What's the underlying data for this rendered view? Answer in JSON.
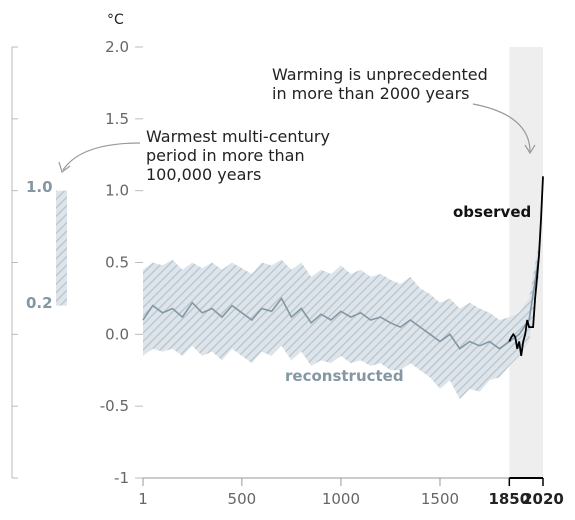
{
  "chart_data": {
    "type": "line",
    "unit_label": "°C",
    "ylim": [
      -1,
      2
    ],
    "xlim": [
      1,
      2020
    ],
    "y_ticks": [
      {
        "value": 2.0,
        "label": "2.0"
      },
      {
        "value": 1.5,
        "label": "1.5"
      },
      {
        "value": 1.0,
        "label": "1.0"
      },
      {
        "value": 0.5,
        "label": "0.5"
      },
      {
        "value": 0.0,
        "label": "0.0"
      },
      {
        "value": -0.5,
        "label": "-0.5"
      },
      {
        "value": -1.0,
        "label": "-1"
      }
    ],
    "x_ticks": [
      {
        "value": 1,
        "label": "1",
        "bold": false
      },
      {
        "value": 500,
        "label": "500",
        "bold": false
      },
      {
        "value": 1000,
        "label": "1000",
        "bold": false
      },
      {
        "value": 1500,
        "label": "1500",
        "bold": false
      },
      {
        "value": 1850,
        "label": "1850",
        "bold": true
      },
      {
        "value": 2020,
        "label": "2020",
        "bold": true
      }
    ],
    "shaded_period": [
      1850,
      2020
    ],
    "series": [
      {
        "name": "reconstructed",
        "color": "#8497a3",
        "x": [
          1,
          50,
          100,
          150,
          200,
          250,
          300,
          350,
          400,
          450,
          500,
          550,
          600,
          650,
          700,
          750,
          800,
          850,
          900,
          950,
          1000,
          1050,
          1100,
          1150,
          1200,
          1250,
          1300,
          1350,
          1400,
          1450,
          1500,
          1550,
          1600,
          1650,
          1700,
          1750,
          1800,
          1850,
          1900,
          1950,
          2000
        ],
        "y": [
          0.1,
          0.2,
          0.15,
          0.18,
          0.12,
          0.22,
          0.15,
          0.18,
          0.12,
          0.2,
          0.15,
          0.1,
          0.18,
          0.16,
          0.25,
          0.12,
          0.18,
          0.08,
          0.14,
          0.1,
          0.16,
          0.12,
          0.15,
          0.1,
          0.12,
          0.08,
          0.05,
          0.1,
          0.05,
          0.0,
          -0.05,
          0.0,
          -0.1,
          -0.05,
          -0.08,
          -0.05,
          -0.1,
          -0.05,
          0.0,
          0.1,
          0.55
        ],
        "upper": [
          0.45,
          0.5,
          0.48,
          0.52,
          0.45,
          0.5,
          0.46,
          0.5,
          0.45,
          0.5,
          0.46,
          0.42,
          0.5,
          0.48,
          0.52,
          0.45,
          0.5,
          0.4,
          0.45,
          0.42,
          0.48,
          0.42,
          0.45,
          0.4,
          0.42,
          0.38,
          0.35,
          0.4,
          0.32,
          0.28,
          0.22,
          0.25,
          0.18,
          0.22,
          0.18,
          0.15,
          0.1,
          0.12,
          0.15,
          0.25,
          0.65
        ],
        "lower": [
          -0.15,
          -0.1,
          -0.12,
          -0.1,
          -0.15,
          -0.08,
          -0.15,
          -0.12,
          -0.18,
          -0.1,
          -0.15,
          -0.2,
          -0.12,
          -0.15,
          -0.08,
          -0.18,
          -0.12,
          -0.22,
          -0.18,
          -0.2,
          -0.15,
          -0.2,
          -0.18,
          -0.22,
          -0.2,
          -0.25,
          -0.25,
          -0.2,
          -0.25,
          -0.3,
          -0.38,
          -0.32,
          -0.45,
          -0.38,
          -0.4,
          -0.32,
          -0.3,
          -0.22,
          -0.15,
          -0.05,
          0.4
        ]
      },
      {
        "name": "observed",
        "color": "#000000",
        "x": [
          1850,
          1860,
          1870,
          1880,
          1890,
          1900,
          1910,
          1920,
          1930,
          1940,
          1950,
          1960,
          1970,
          1980,
          1990,
          2000,
          2010,
          2020
        ],
        "y": [
          -0.05,
          -0.02,
          0.0,
          -0.02,
          -0.1,
          -0.05,
          -0.15,
          -0.05,
          0.0,
          0.1,
          0.05,
          0.05,
          0.05,
          0.25,
          0.4,
          0.55,
          0.8,
          1.1
        ]
      }
    ],
    "side_scale": {
      "min": 0.2,
      "max": 1.0,
      "labels": [
        "1.0",
        "0.2"
      ]
    },
    "annotations": {
      "top": [
        "Warming is unprecedented",
        "in more than 2000 years"
      ],
      "side": [
        "Warmest multi-century",
        "period in more than",
        "100,000 years"
      ],
      "observed": "observed",
      "reconstructed": "reconstructed"
    }
  }
}
